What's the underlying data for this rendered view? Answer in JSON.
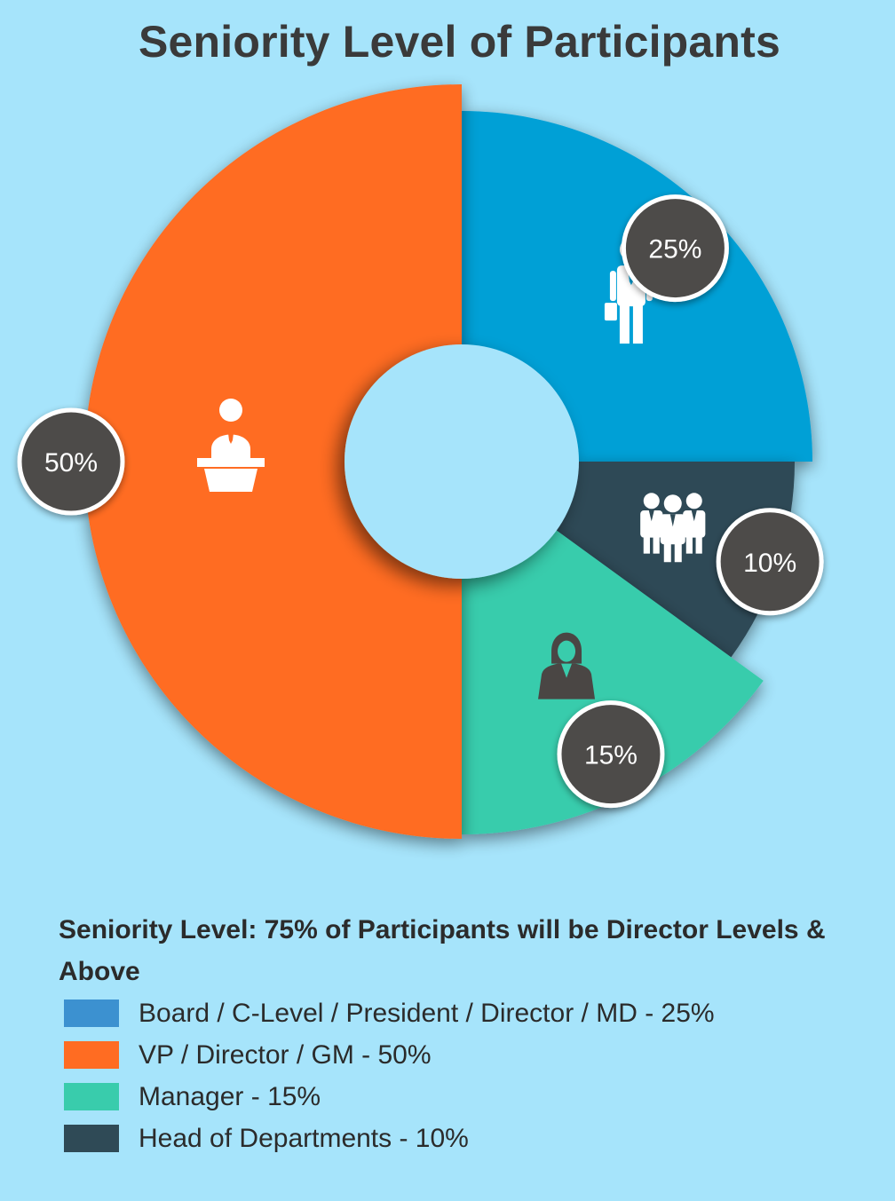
{
  "chart_data": {
    "type": "pie",
    "title": "Seniority Level of Participants",
    "slices": [
      {
        "key": "board",
        "name": "Board / C-Level / President / Director / MD",
        "value": 25,
        "label": "25%",
        "color": "#00a0d6",
        "icon": "businessman-briefcase-icon"
      },
      {
        "key": "head",
        "name": "Head of Departments",
        "value": 10,
        "label": "10%",
        "color": "#2f4a56",
        "icon": "group-icon"
      },
      {
        "key": "manager",
        "name": "Manager",
        "value": 15,
        "label": "15%",
        "color": "#39ccac",
        "icon": "woman-icon"
      },
      {
        "key": "vp",
        "name": "VP / Director / GM",
        "value": 50,
        "label": "50%",
        "color": "#ff6c22",
        "icon": "speaker-podium-icon"
      }
    ]
  },
  "legend": {
    "heading": "Seniority Level: 75% of Participants will be Director Levels & Above",
    "items": [
      {
        "label": "Board / C-Level / President / Director / MD - 25%",
        "color": "#3c91d0"
      },
      {
        "label": "VP / Director / GM - 50%",
        "color": "#ff6c22"
      },
      {
        "label": "Manager - 15%",
        "color": "#39ccac"
      },
      {
        "label": "Head of Departments - 10%",
        "color": "#2f4a56"
      }
    ]
  }
}
